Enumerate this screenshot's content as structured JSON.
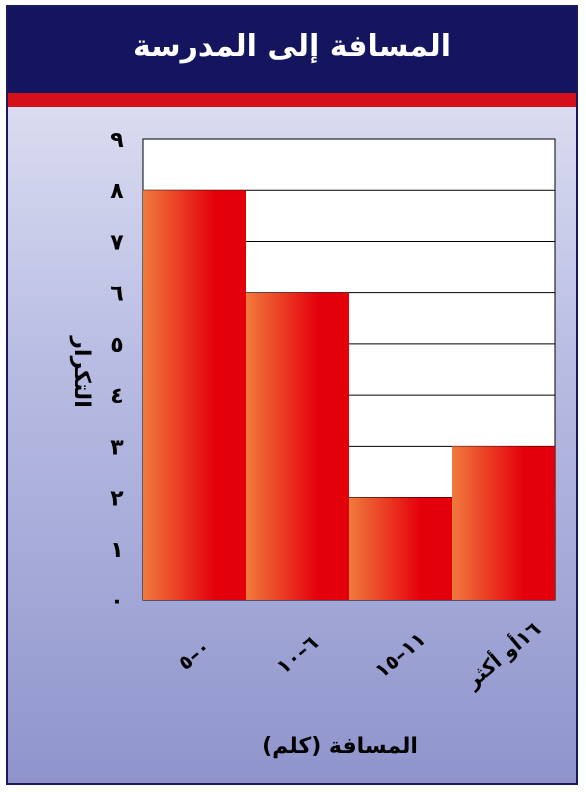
{
  "title": "المسافة إلى المدرسة",
  "colors": {
    "header": "#14155e",
    "band": "#d40f1a",
    "bar_light": "#f07a3d",
    "bar_dark": "#e4000b"
  },
  "chart_data": {
    "type": "bar",
    "title": "المسافة إلى المدرسة",
    "xlabel": "المسافة (كلم)",
    "ylabel": "التكرار",
    "categories": [
      "٠–٥",
      "٦–١٠",
      "١١–١٥",
      "١٦أو أكثر"
    ],
    "values": [
      8,
      6,
      2,
      3
    ],
    "ylim": [
      0,
      9
    ],
    "yticks": [
      "٠",
      "١",
      "٢",
      "٣",
      "٤",
      "٥",
      "٦",
      "٧",
      "٨",
      "٩"
    ],
    "grid": true
  }
}
